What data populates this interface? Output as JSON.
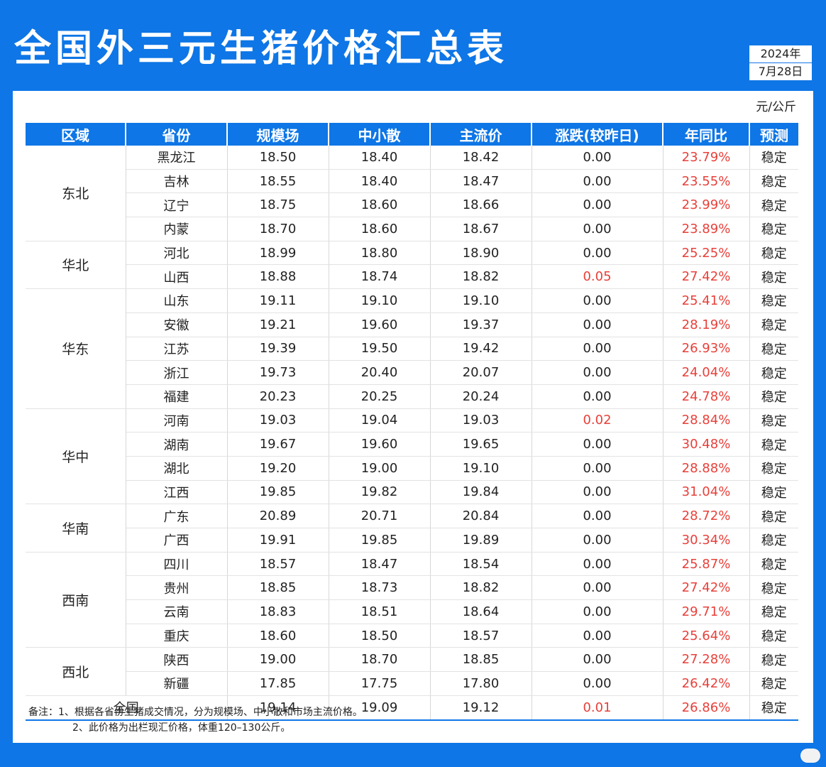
{
  "title": "全国外三元生猪价格汇总表",
  "date_year": "2024年",
  "date_day": "7月28日",
  "unit": "元/公斤",
  "headers": [
    "区域",
    "省份",
    "规模场",
    "中小散",
    "主流价",
    "涨跌(较昨日)",
    "年同比",
    "预测"
  ],
  "regions": [
    {
      "name": "东北",
      "rows": [
        [
          "黑龙江",
          "18.50",
          "18.40",
          "18.42",
          "0.00",
          "23.79%",
          "稳定"
        ],
        [
          "吉林",
          "18.55",
          "18.40",
          "18.47",
          "0.00",
          "23.55%",
          "稳定"
        ],
        [
          "辽宁",
          "18.75",
          "18.60",
          "18.66",
          "0.00",
          "23.99%",
          "稳定"
        ],
        [
          "内蒙",
          "18.70",
          "18.60",
          "18.67",
          "0.00",
          "23.89%",
          "稳定"
        ]
      ]
    },
    {
      "name": "华北",
      "rows": [
        [
          "河北",
          "18.99",
          "18.80",
          "18.90",
          "0.00",
          "25.25%",
          "稳定"
        ],
        [
          "山西",
          "18.88",
          "18.74",
          "18.82",
          "0.05",
          "27.42%",
          "稳定"
        ]
      ]
    },
    {
      "name": "华东",
      "rows": [
        [
          "山东",
          "19.11",
          "19.10",
          "19.10",
          "0.00",
          "25.41%",
          "稳定"
        ],
        [
          "安徽",
          "19.21",
          "19.60",
          "19.37",
          "0.00",
          "28.19%",
          "稳定"
        ],
        [
          "江苏",
          "19.39",
          "19.50",
          "19.42",
          "0.00",
          "26.93%",
          "稳定"
        ],
        [
          "浙江",
          "19.73",
          "20.40",
          "20.07",
          "0.00",
          "24.04%",
          "稳定"
        ],
        [
          "福建",
          "20.23",
          "20.25",
          "20.24",
          "0.00",
          "24.78%",
          "稳定"
        ]
      ]
    },
    {
      "name": "华中",
      "rows": [
        [
          "河南",
          "19.03",
          "19.04",
          "19.03",
          "0.02",
          "28.84%",
          "稳定"
        ],
        [
          "湖南",
          "19.67",
          "19.60",
          "19.65",
          "0.00",
          "30.48%",
          "稳定"
        ],
        [
          "湖北",
          "19.20",
          "19.00",
          "19.10",
          "0.00",
          "28.88%",
          "稳定"
        ],
        [
          "江西",
          "19.85",
          "19.82",
          "19.84",
          "0.00",
          "31.04%",
          "稳定"
        ]
      ]
    },
    {
      "name": "华南",
      "rows": [
        [
          "广东",
          "20.89",
          "20.71",
          "20.84",
          "0.00",
          "28.72%",
          "稳定"
        ],
        [
          "广西",
          "19.91",
          "19.85",
          "19.89",
          "0.00",
          "30.34%",
          "稳定"
        ]
      ]
    },
    {
      "name": "西南",
      "rows": [
        [
          "四川",
          "18.57",
          "18.47",
          "18.54",
          "0.00",
          "25.87%",
          "稳定"
        ],
        [
          "贵州",
          "18.85",
          "18.73",
          "18.82",
          "0.00",
          "27.42%",
          "稳定"
        ],
        [
          "云南",
          "18.83",
          "18.51",
          "18.64",
          "0.00",
          "29.71%",
          "稳定"
        ],
        [
          "重庆",
          "18.60",
          "18.50",
          "18.57",
          "0.00",
          "25.64%",
          "稳定"
        ]
      ]
    },
    {
      "name": "西北",
      "rows": [
        [
          "陕西",
          "19.00",
          "18.70",
          "18.85",
          "0.00",
          "27.28%",
          "稳定"
        ],
        [
          "新疆",
          "17.85",
          "17.75",
          "17.80",
          "0.00",
          "26.42%",
          "稳定"
        ]
      ]
    }
  ],
  "national": [
    "全国",
    "19.14",
    "19.09",
    "19.12",
    "0.01",
    "26.86%",
    "稳定"
  ],
  "notes": [
    "备注：1、根据各省份生猪成交情况，分为规模场、中小散和市场主流价格。",
    "2、此价格为出栏现汇价格，体重120–130公斤。"
  ],
  "colors": {
    "accent": "#0e76e6",
    "up": "#e8403a"
  }
}
